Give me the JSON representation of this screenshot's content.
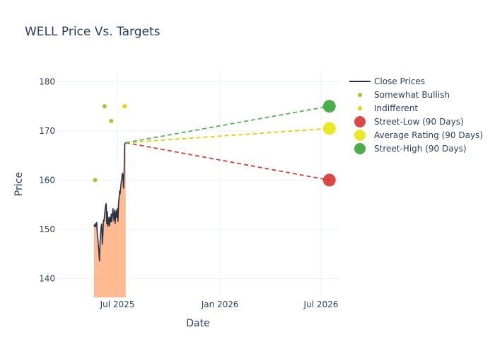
{
  "chart_data": {
    "type": "line",
    "title": "WELL Price Vs. Targets",
    "xlabel": "Date",
    "ylabel": "Price",
    "ylim": [
      136.2,
      182.2
    ],
    "xlim": [
      "2025-03-14",
      "2026-08-03"
    ],
    "grid": true,
    "legend_position": "right",
    "x_ticks": [
      {
        "date": "2025-07-01",
        "label": "Jul 2025"
      },
      {
        "date": "2026-01-01",
        "label": "Jan 2026"
      },
      {
        "date": "2026-07-01",
        "label": "Jul 2026"
      }
    ],
    "y_ticks": [
      140,
      150,
      160,
      170,
      180
    ],
    "colors": {
      "close": "#2a3447",
      "fill": "#ffa36e",
      "somewhat_bullish": "#9acd32",
      "indifferent": "#e5d800",
      "street_low": "#d62728",
      "average": "#e5e500",
      "street_high": "#2ca02c"
    },
    "close_prices": {
      "name": "Close Prices",
      "points": [
        [
          "2025-05-20",
          150.6
        ],
        [
          "2025-05-21",
          150.9
        ],
        [
          "2025-05-22",
          150.5
        ],
        [
          "2025-05-23",
          151.2
        ],
        [
          "2025-05-24",
          150.8
        ],
        [
          "2025-05-25",
          151.4
        ],
        [
          "2025-05-26",
          149.0
        ],
        [
          "2025-05-27",
          148.2
        ],
        [
          "2025-05-28",
          146.6
        ],
        [
          "2025-05-29",
          145.1
        ],
        [
          "2025-05-30",
          143.6
        ],
        [
          "2025-05-31",
          147.4
        ],
        [
          "2025-06-01",
          149.2
        ],
        [
          "2025-06-02",
          150.6
        ],
        [
          "2025-06-03",
          151.1
        ],
        [
          "2025-06-04",
          147.0
        ],
        [
          "2025-06-05",
          148.9
        ],
        [
          "2025-06-06",
          151.9
        ],
        [
          "2025-06-07",
          151.7
        ],
        [
          "2025-06-08",
          152.8
        ],
        [
          "2025-06-09",
          154.0
        ],
        [
          "2025-06-10",
          154.9
        ],
        [
          "2025-06-11",
          155.2
        ],
        [
          "2025-06-12",
          151.2
        ],
        [
          "2025-06-13",
          153.6
        ],
        [
          "2025-06-14",
          150.6
        ],
        [
          "2025-06-15",
          151.4
        ],
        [
          "2025-06-16",
          152.5
        ],
        [
          "2025-06-17",
          150.7
        ],
        [
          "2025-06-18",
          152.4
        ],
        [
          "2025-06-19",
          151.5
        ],
        [
          "2025-06-20",
          153.1
        ],
        [
          "2025-06-21",
          151.6
        ],
        [
          "2025-06-22",
          153.0
        ],
        [
          "2025-06-23",
          154.2
        ],
        [
          "2025-06-24",
          152.8
        ],
        [
          "2025-06-25",
          151.8
        ],
        [
          "2025-06-26",
          154.0
        ],
        [
          "2025-06-27",
          151.2
        ],
        [
          "2025-06-28",
          153.1
        ],
        [
          "2025-06-29",
          153.8
        ],
        [
          "2025-06-30",
          152.4
        ],
        [
          "2025-07-01",
          154.2
        ],
        [
          "2025-07-02",
          151.6
        ],
        [
          "2025-07-03",
          155.2
        ],
        [
          "2025-07-04",
          156.4
        ],
        [
          "2025-07-05",
          157.8
        ],
        [
          "2025-07-06",
          157.2
        ],
        [
          "2025-07-07",
          158.6
        ],
        [
          "2025-07-08",
          159.6
        ],
        [
          "2025-07-09",
          160.4
        ],
        [
          "2025-07-10",
          161.4
        ],
        [
          "2025-07-11",
          161.0
        ],
        [
          "2025-07-12",
          158.4
        ],
        [
          "2025-07-13",
          161.7
        ],
        [
          "2025-07-14",
          167.2
        ],
        [
          "2025-07-15",
          167.5
        ],
        [
          "2025-07-16",
          167.6
        ]
      ]
    },
    "analyst_ratings": [
      {
        "name": "Somewhat Bullish",
        "points": [
          [
            "2025-05-22",
            160
          ],
          [
            "2025-06-08",
            175
          ],
          [
            "2025-06-20",
            172
          ]
        ]
      },
      {
        "name": "Indifferent",
        "points": [
          [
            "2025-07-14",
            175
          ]
        ]
      }
    ],
    "targets": {
      "start": [
        "2025-07-16",
        167.6
      ],
      "date": "2026-07-16",
      "items": [
        {
          "name": "Street-Low (90 Days)",
          "value": 160
        },
        {
          "name": "Average Rating (90 Days)",
          "value": 170.5
        },
        {
          "name": "Street-High (90 Days)",
          "value": 175
        }
      ]
    },
    "legend": [
      "Close Prices",
      "Somewhat Bullish",
      "Indifferent",
      "Street-Low (90 Days)",
      "Average Rating (90 Days)",
      "Street-High (90 Days)"
    ]
  }
}
